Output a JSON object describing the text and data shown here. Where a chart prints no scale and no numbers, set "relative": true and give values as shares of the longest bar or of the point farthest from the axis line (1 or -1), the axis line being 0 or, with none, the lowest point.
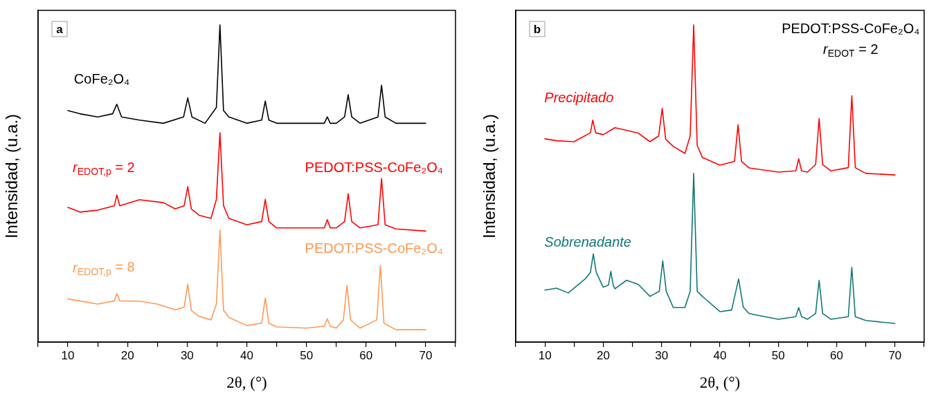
{
  "chart_data": [
    {
      "type": "line",
      "title": "a",
      "xlabel": "2θ, (°)",
      "ylabel": "Intensidad, (u.a.)",
      "relative": true,
      "legend": false,
      "grid": false,
      "marker": "none",
      "line_style": "solid",
      "xlim": [
        5,
        75
      ],
      "xticks": [
        {
          "value": 5,
          "label": null
        },
        10,
        {
          "value": 15,
          "label": null
        },
        20,
        {
          "value": 25,
          "label": null
        },
        30,
        {
          "value": 35,
          "label": null
        },
        40,
        {
          "value": 45,
          "label": null
        },
        50,
        {
          "value": 55,
          "label": null
        },
        60,
        {
          "value": 65,
          "label": null
        },
        70,
        {
          "value": 75,
          "label": null
        }
      ],
      "annotations": [
        "r$_{EDOT,p}$ = 2",
        "r$_{EDOT,p}$ = 8"
      ],
      "series": [
        {
          "name": "CoFe₂O₄",
          "color": "#000000",
          "x": [
            10,
            12,
            15,
            17.5,
            18.2,
            19,
            22,
            26,
            29.4,
            30.1,
            30.8,
            33,
            34.9,
            35.5,
            36.1,
            37,
            40,
            42.5,
            43.1,
            43.7,
            45,
            50,
            53,
            53.5,
            54,
            55,
            56.4,
            57,
            57.6,
            59,
            62,
            62.6,
            63.2,
            65,
            70
          ],
          "values": [
            0.73,
            0.72,
            0.71,
            0.72,
            0.75,
            0.71,
            0.7,
            0.69,
            0.71,
            0.77,
            0.71,
            0.69,
            0.74,
            1.0,
            0.73,
            0.71,
            0.69,
            0.7,
            0.76,
            0.7,
            0.69,
            0.69,
            0.69,
            0.71,
            0.69,
            0.69,
            0.71,
            0.78,
            0.71,
            0.69,
            0.71,
            0.81,
            0.71,
            0.69,
            0.69
          ]
        },
        {
          "name": "PEDOT:PSS-CoFe₂O₄",
          "color": "#ff0000",
          "x": [
            10,
            12,
            15,
            17.8,
            18.2,
            18.7,
            22,
            26,
            28,
            29.5,
            30.1,
            30.7,
            32,
            34,
            34.9,
            35.5,
            36.1,
            37,
            40,
            42.5,
            43.1,
            43.7,
            45,
            50,
            53,
            53.5,
            54,
            55,
            56.4,
            57,
            57.6,
            59,
            62,
            62.6,
            63.2,
            65,
            70
          ],
          "values": [
            0.425,
            0.41,
            0.416,
            0.43,
            0.464,
            0.43,
            0.449,
            0.44,
            0.42,
            0.43,
            0.49,
            0.42,
            0.4,
            0.39,
            0.45,
            0.66,
            0.43,
            0.39,
            0.37,
            0.38,
            0.45,
            0.38,
            0.36,
            0.36,
            0.36,
            0.386,
            0.36,
            0.36,
            0.38,
            0.468,
            0.38,
            0.36,
            0.37,
            0.516,
            0.37,
            0.357,
            0.35
          ]
        },
        {
          "name": "PEDOT:PSS-CoFe₂O₄",
          "color": "#ff9955",
          "x": [
            10,
            12,
            15,
            17.8,
            18.2,
            18.7,
            22,
            25,
            28,
            29.5,
            30.1,
            30.7,
            32,
            34,
            34.9,
            35.5,
            36.1,
            37,
            40,
            42.5,
            43.1,
            43.7,
            45,
            50,
            53,
            53.5,
            54,
            55,
            56.2,
            56.8,
            57.4,
            59,
            61.8,
            62.4,
            63,
            65,
            70
          ],
          "values": [
            0.136,
            0.13,
            0.12,
            0.13,
            0.153,
            0.13,
            0.129,
            0.12,
            0.102,
            0.11,
            0.183,
            0.1,
            0.081,
            0.07,
            0.12,
            0.353,
            0.1,
            0.078,
            0.052,
            0.06,
            0.139,
            0.06,
            0.048,
            0.044,
            0.05,
            0.074,
            0.05,
            0.044,
            0.07,
            0.179,
            0.07,
            0.044,
            0.07,
            0.242,
            0.06,
            0.039,
            0.039
          ]
        }
      ]
    },
    {
      "type": "line",
      "title": "b",
      "xlabel": "2θ, (°)",
      "ylabel": "Intensidad, (u.a.)",
      "relative": true,
      "legend": false,
      "grid": false,
      "marker": "none",
      "line_style": "solid",
      "xlim": [
        5,
        75
      ],
      "xticks": [
        {
          "value": 5,
          "label": null
        },
        10,
        {
          "value": 15,
          "label": null
        },
        20,
        {
          "value": 25,
          "label": null
        },
        30,
        {
          "value": 35,
          "label": null
        },
        40,
        {
          "value": 45,
          "label": null
        },
        50,
        {
          "value": 55,
          "label": null
        },
        60,
        {
          "value": 65,
          "label": null
        },
        70,
        {
          "value": 75,
          "label": null
        }
      ],
      "annotations": [
        "PEDOT:PSS-CoFe₂O₄",
        "r$_{EDOT}$ = 2"
      ],
      "series": [
        {
          "name": "Precipitado",
          "color": "#ff0000",
          "x": [
            10,
            12,
            15,
            17.8,
            18.2,
            18.7,
            20,
            22,
            26,
            28,
            29.5,
            30.1,
            30.7,
            32,
            34,
            34.9,
            35.5,
            36.1,
            37,
            40,
            42.5,
            43.1,
            43.7,
            45,
            50,
            53,
            53.5,
            54,
            55,
            56.4,
            57,
            57.6,
            59,
            62,
            62.6,
            63.2,
            65,
            70
          ],
          "values": [
            0.641,
            0.635,
            0.632,
            0.66,
            0.7,
            0.66,
            0.654,
            0.676,
            0.659,
            0.632,
            0.65,
            0.737,
            0.64,
            0.617,
            0.595,
            0.65,
            1.0,
            0.62,
            0.582,
            0.558,
            0.57,
            0.685,
            0.57,
            0.549,
            0.536,
            0.54,
            0.578,
            0.54,
            0.536,
            0.56,
            0.705,
            0.56,
            0.54,
            0.55,
            0.777,
            0.55,
            0.532,
            0.527
          ]
        },
        {
          "name": "Sobrenadante",
          "color": "#117777",
          "x": [
            10,
            12,
            14,
            17,
            17.8,
            18.3,
            18.8,
            20,
            20.9,
            21.3,
            21.7,
            22,
            24,
            26,
            28,
            29.6,
            30.2,
            30.8,
            32,
            34,
            34.9,
            35.5,
            36.1,
            37,
            40,
            42,
            43.2,
            44,
            45,
            50,
            53,
            53.5,
            54,
            55,
            56.4,
            57,
            57.6,
            59,
            62,
            62.6,
            63.2,
            65,
            70
          ],
          "values": [
            0.164,
            0.17,
            0.155,
            0.201,
            0.22,
            0.278,
            0.22,
            0.173,
            0.18,
            0.223,
            0.18,
            0.168,
            0.195,
            0.182,
            0.144,
            0.16,
            0.256,
            0.16,
            0.109,
            0.109,
            0.16,
            0.532,
            0.16,
            0.144,
            0.096,
            0.101,
            0.199,
            0.11,
            0.09,
            0.072,
            0.08,
            0.109,
            0.08,
            0.072,
            0.09,
            0.195,
            0.09,
            0.072,
            0.08,
            0.236,
            0.08,
            0.068,
            0.059
          ]
        }
      ]
    }
  ]
}
